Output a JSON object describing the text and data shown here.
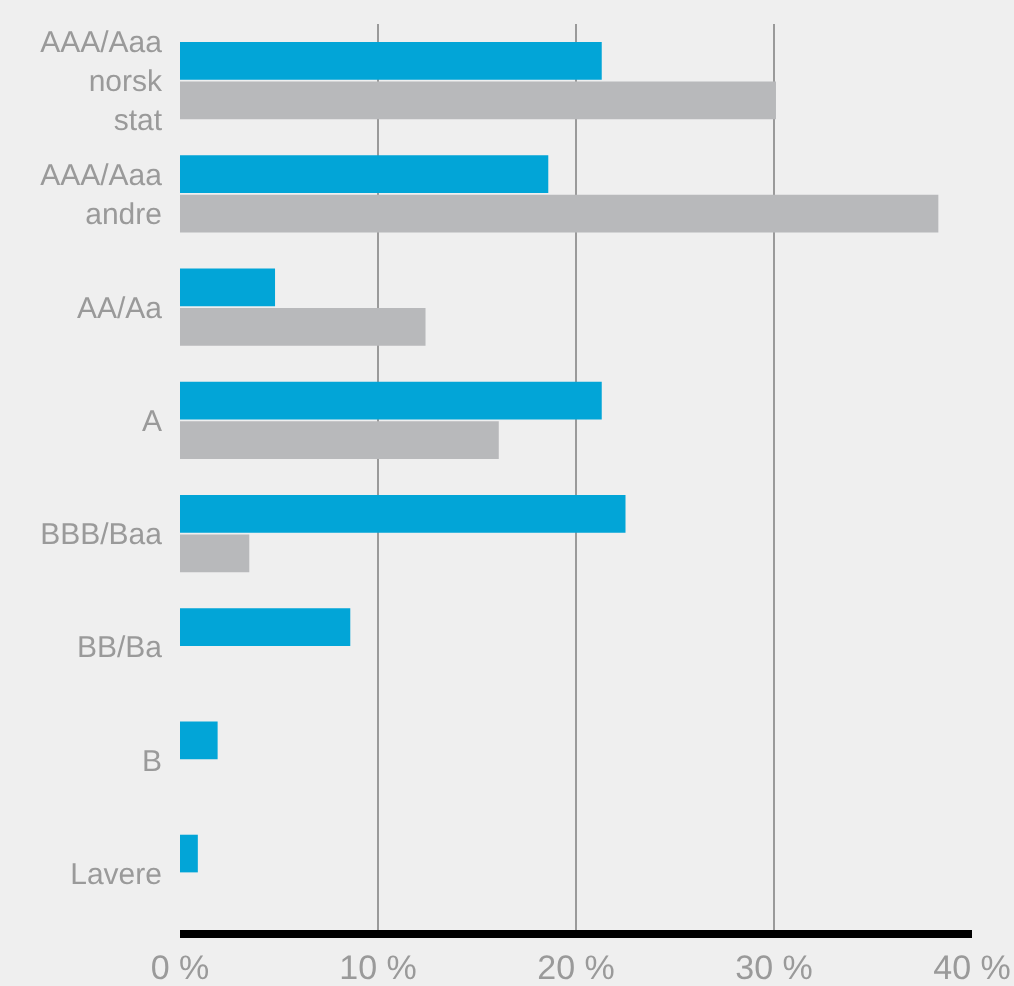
{
  "chart_data": {
    "type": "bar",
    "orientation": "horizontal",
    "categories": [
      "AAA/Aaa norsk stat",
      "AAA/Aaa andre",
      "AA/Aa",
      "A",
      "BBB/Baa",
      "BB/Ba",
      "B",
      "Lavere"
    ],
    "series": [
      {
        "color": "#02a5d7",
        "values": [
          21.3,
          18.6,
          4.8,
          21.3,
          22.5,
          8.6,
          1.9,
          0.9
        ]
      },
      {
        "color": "#b8b9bb",
        "values": [
          30.1,
          38.3,
          12.4,
          16.1,
          3.5,
          null,
          null,
          null
        ]
      }
    ],
    "xlim": [
      0,
      40
    ],
    "xticks": [
      {
        "value": 0,
        "label": "0 %"
      },
      {
        "value": 10,
        "label": "10 %"
      },
      {
        "value": 20,
        "label": "20 %"
      },
      {
        "value": 30,
        "label": "30 %"
      },
      {
        "value": 40,
        "label": "40 %"
      }
    ],
    "grid": "x",
    "legend": false
  }
}
